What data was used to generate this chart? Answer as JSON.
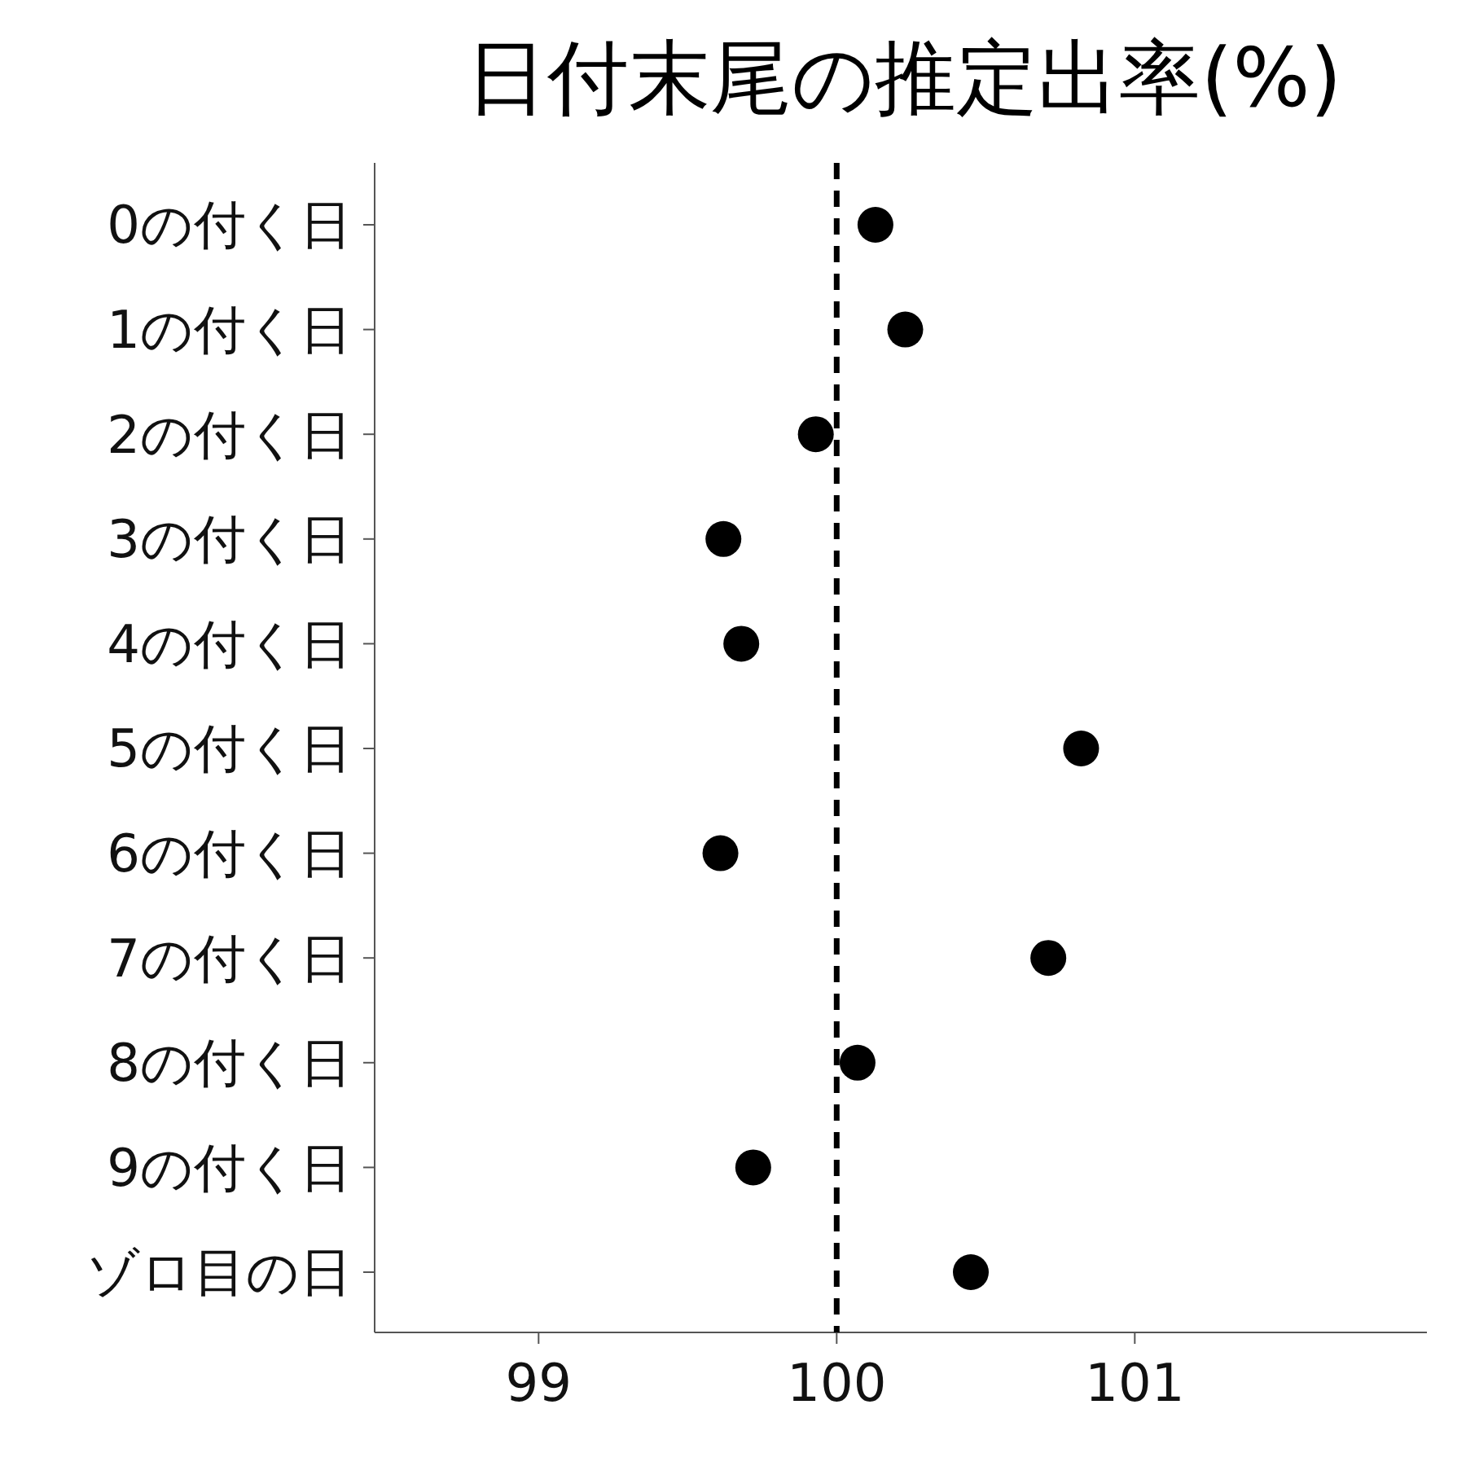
{
  "chart_data": {
    "type": "scatter",
    "orientation": "horizontal",
    "title": "日付末尾の推定出率(%)",
    "categories": [
      "0の付く日",
      "1の付く日",
      "2の付く日",
      "3の付く日",
      "4の付く日",
      "5の付く日",
      "6の付く日",
      "7の付く日",
      "8の付く日",
      "9の付く日",
      "ゾロ目の日"
    ],
    "values": [
      100.13,
      100.23,
      99.93,
      99.62,
      99.68,
      100.82,
      99.61,
      100.71,
      100.07,
      99.72,
      100.45
    ],
    "color": "#000000",
    "marker": "circle",
    "xlim": [
      98.45,
      101.98
    ],
    "xticks": [
      99,
      100,
      101
    ],
    "ref_lines": [
      {
        "axis": "x",
        "value": 100,
        "line_style": "dashed",
        "color": "#000000"
      }
    ],
    "grid": false
  }
}
